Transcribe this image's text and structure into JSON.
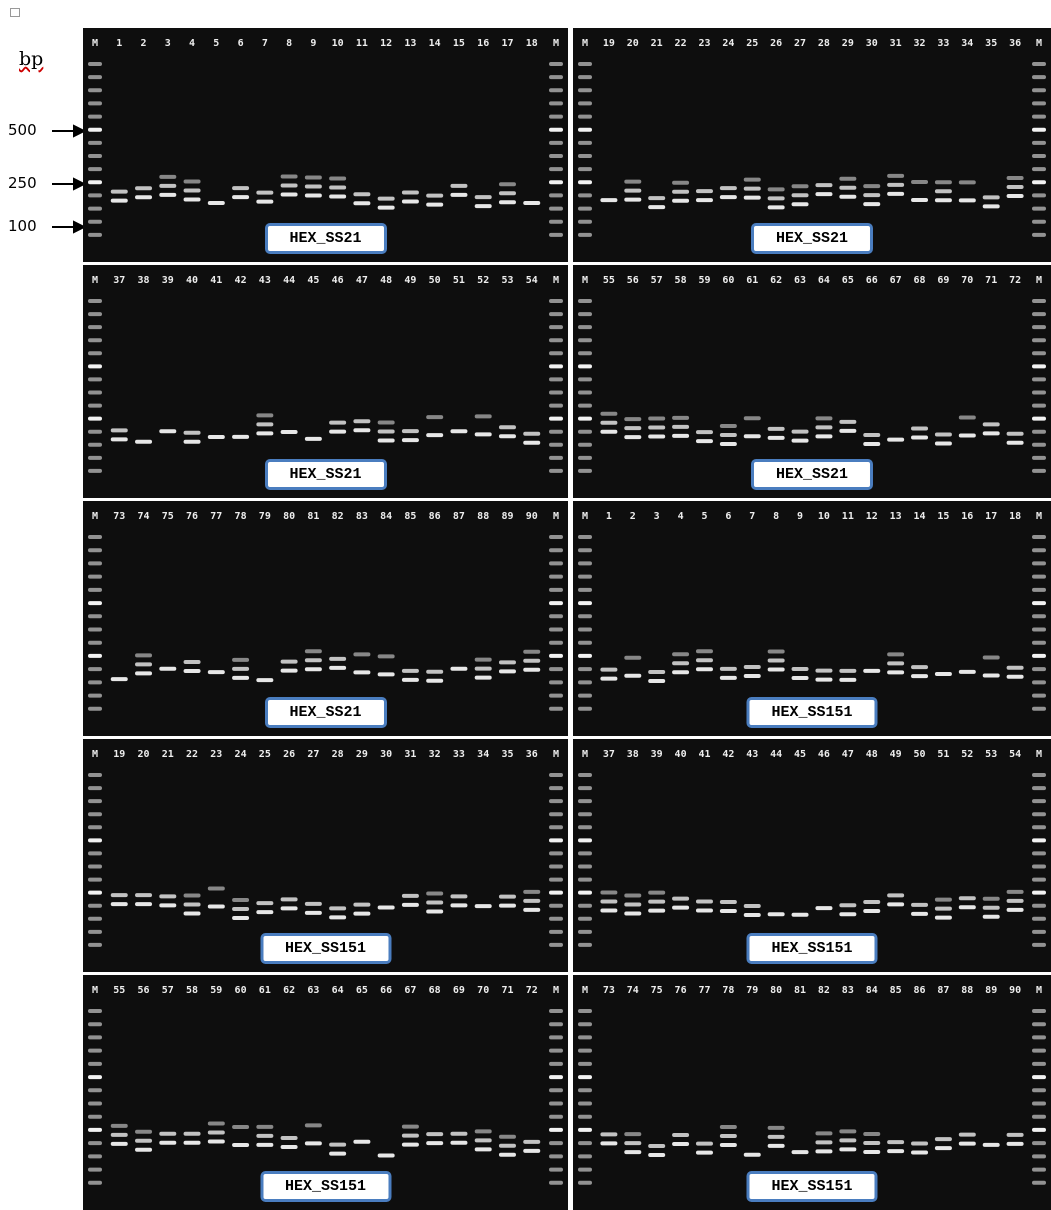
{
  "axis": {
    "unit": "bp",
    "markers": [
      "500",
      "250",
      "100"
    ]
  },
  "panels": [
    {
      "lanes": [
        "M",
        "1",
        "2",
        "3",
        "4",
        "5",
        "6",
        "7",
        "8",
        "9",
        "10",
        "11",
        "12",
        "13",
        "14",
        "15",
        "16",
        "17",
        "18",
        "M"
      ],
      "label": "HEX_SS21"
    },
    {
      "lanes": [
        "M",
        "19",
        "20",
        "21",
        "22",
        "23",
        "24",
        "25",
        "26",
        "27",
        "28",
        "29",
        "30",
        "31",
        "32",
        "33",
        "34",
        "35",
        "36",
        "M"
      ],
      "label": "HEX_SS21"
    },
    {
      "lanes": [
        "M",
        "37",
        "38",
        "39",
        "40",
        "41",
        "42",
        "43",
        "44",
        "45",
        "46",
        "47",
        "48",
        "49",
        "50",
        "51",
        "52",
        "53",
        "54",
        "M"
      ],
      "label": "HEX_SS21"
    },
    {
      "lanes": [
        "M",
        "55",
        "56",
        "57",
        "58",
        "59",
        "60",
        "61",
        "62",
        "63",
        "64",
        "65",
        "66",
        "67",
        "68",
        "69",
        "70",
        "71",
        "72",
        "M"
      ],
      "label": "HEX_SS21"
    },
    {
      "lanes": [
        "M",
        "73",
        "74",
        "75",
        "76",
        "77",
        "78",
        "79",
        "80",
        "81",
        "82",
        "83",
        "84",
        "85",
        "86",
        "87",
        "88",
        "89",
        "90",
        "M"
      ],
      "label": "HEX_SS21"
    },
    {
      "lanes": [
        "M",
        "1",
        "2",
        "3",
        "4",
        "5",
        "6",
        "7",
        "8",
        "9",
        "10",
        "11",
        "12",
        "13",
        "14",
        "15",
        "16",
        "17",
        "18",
        "M"
      ],
      "label": "HEX_SS151"
    },
    {
      "lanes": [
        "M",
        "19",
        "20",
        "21",
        "22",
        "23",
        "24",
        "25",
        "26",
        "27",
        "28",
        "29",
        "30",
        "31",
        "32",
        "33",
        "34",
        "35",
        "36",
        "M"
      ],
      "label": "HEX_SS151"
    },
    {
      "lanes": [
        "M",
        "37",
        "38",
        "39",
        "40",
        "41",
        "42",
        "43",
        "44",
        "45",
        "46",
        "47",
        "48",
        "49",
        "50",
        "51",
        "52",
        "53",
        "54",
        "M"
      ],
      "label": "HEX_SS151"
    },
    {
      "lanes": [
        "M",
        "55",
        "56",
        "57",
        "58",
        "59",
        "60",
        "61",
        "62",
        "63",
        "64",
        "65",
        "66",
        "67",
        "68",
        "69",
        "70",
        "71",
        "72",
        "M"
      ],
      "label": "HEX_SS151"
    },
    {
      "lanes": [
        "M",
        "73",
        "74",
        "75",
        "76",
        "77",
        "78",
        "79",
        "80",
        "81",
        "82",
        "83",
        "84",
        "85",
        "86",
        "87",
        "88",
        "89",
        "90",
        "M"
      ],
      "label": "HEX_SS151"
    }
  ]
}
